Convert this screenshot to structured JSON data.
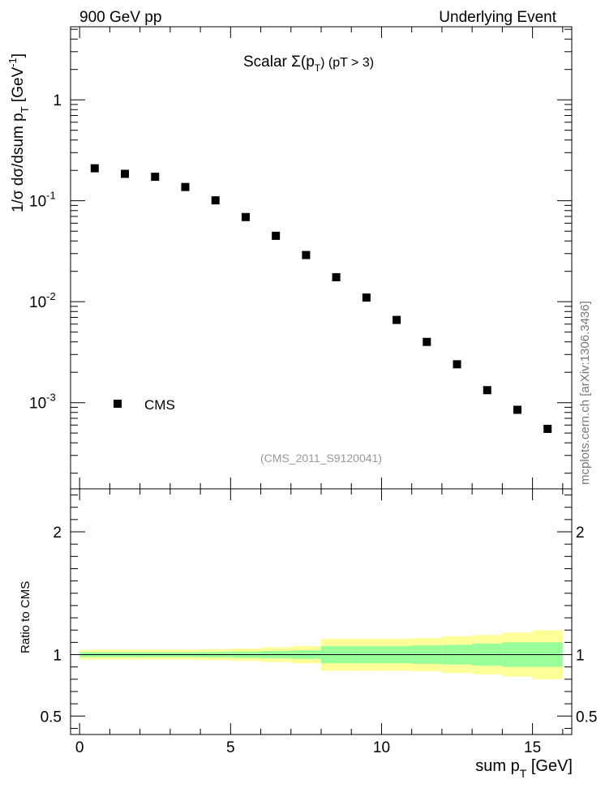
{
  "header": {
    "left": "900 GeV pp",
    "right": "Underlying Event"
  },
  "side_note": "mcplots.cern.ch [arXiv:1306.3436]",
  "chart_data": [
    {
      "type": "scatter",
      "title": "Scalar Σ(p_T) (pT > 3)",
      "title_parts": {
        "pre": "Scalar ",
        "sigma": "Σ(p",
        "sub": "T",
        "post": ") (pT >  3)"
      },
      "ylabel": "1/σ dσ/dsum p_T [GeV^-1]",
      "ylabel_parts": {
        "main": "1/σ dσ/dsum p",
        "sub": "T",
        "unit": " [GeV",
        "sup": "-1",
        "close": "]"
      },
      "y_scale": "log",
      "xlim": [
        -0.3,
        16.3
      ],
      "ylim": [
        0.00014,
        5.3
      ],
      "y_ticks": [
        {
          "value": 1,
          "base": "1",
          "exp": ""
        },
        {
          "value": 0.1,
          "base": "10",
          "exp": "-1"
        },
        {
          "value": 0.01,
          "base": "10",
          "exp": "-2"
        },
        {
          "value": 0.001,
          "base": "10",
          "exp": "-3"
        }
      ],
      "legend": {
        "entries": [
          "CMS"
        ],
        "placement": "bottom-left"
      },
      "annotation": "(CMS_2011_S9120041)",
      "series": [
        {
          "name": "CMS",
          "marker": "square",
          "color": "#000000",
          "x": [
            0.5,
            1.5,
            2.5,
            3.5,
            4.5,
            5.5,
            6.5,
            7.5,
            8.5,
            9.5,
            10.5,
            11.5,
            12.5,
            13.5,
            14.5,
            15.5
          ],
          "y": [
            0.21,
            0.185,
            0.173,
            0.137,
            0.101,
            0.069,
            0.045,
            0.029,
            0.0175,
            0.011,
            0.0066,
            0.004,
            0.0024,
            0.00133,
            0.00085,
            0.00055
          ]
        }
      ]
    },
    {
      "type": "area",
      "ylabel": "Ratio to CMS",
      "xlabel": "sum p_T [GeV]",
      "xlabel_parts": {
        "main": "sum p",
        "sub": "T",
        "unit": " [GeV]"
      },
      "xlim": [
        -0.3,
        16.3
      ],
      "ylim": [
        0.35,
        2.35
      ],
      "x_ticks": [
        0,
        5,
        10,
        15
      ],
      "x_tick_labels": [
        "0",
        "5",
        "10",
        "15"
      ],
      "y_ticks": [
        0.5,
        1,
        2
      ],
      "y_tick_labels": [
        "0.5",
        "1",
        "2"
      ],
      "reference_line": 1,
      "band_colors": {
        "outer": "#ffff99",
        "inner": "#99ff99"
      },
      "bins": [
        [
          0,
          1
        ],
        [
          1,
          2
        ],
        [
          2,
          3
        ],
        [
          3,
          4
        ],
        [
          4,
          5
        ],
        [
          5,
          6
        ],
        [
          6,
          7
        ],
        [
          7,
          8
        ],
        [
          8,
          9
        ],
        [
          9,
          10
        ],
        [
          10,
          11
        ],
        [
          11,
          12
        ],
        [
          12,
          13
        ],
        [
          13,
          14
        ],
        [
          14,
          15
        ],
        [
          15,
          16
        ]
      ],
      "inner_band": [
        [
          0.98,
          1.02
        ],
        [
          0.98,
          1.02
        ],
        [
          0.98,
          1.02
        ],
        [
          0.98,
          1.02
        ],
        [
          0.978,
          1.022
        ],
        [
          0.975,
          1.025
        ],
        [
          0.97,
          1.03
        ],
        [
          0.965,
          1.035
        ],
        [
          0.93,
          1.07
        ],
        [
          0.93,
          1.07
        ],
        [
          0.93,
          1.07
        ],
        [
          0.925,
          1.075
        ],
        [
          0.92,
          1.08
        ],
        [
          0.91,
          1.09
        ],
        [
          0.9,
          1.1
        ],
        [
          0.9,
          1.1
        ]
      ],
      "outer_band": [
        [
          0.96,
          1.04
        ],
        [
          0.96,
          1.04
        ],
        [
          0.96,
          1.04
        ],
        [
          0.96,
          1.04
        ],
        [
          0.955,
          1.045
        ],
        [
          0.95,
          1.05
        ],
        [
          0.94,
          1.06
        ],
        [
          0.93,
          1.07
        ],
        [
          0.87,
          1.13
        ],
        [
          0.87,
          1.13
        ],
        [
          0.87,
          1.13
        ],
        [
          0.865,
          1.135
        ],
        [
          0.85,
          1.15
        ],
        [
          0.84,
          1.16
        ],
        [
          0.82,
          1.18
        ],
        [
          0.8,
          1.2
        ]
      ]
    }
  ]
}
